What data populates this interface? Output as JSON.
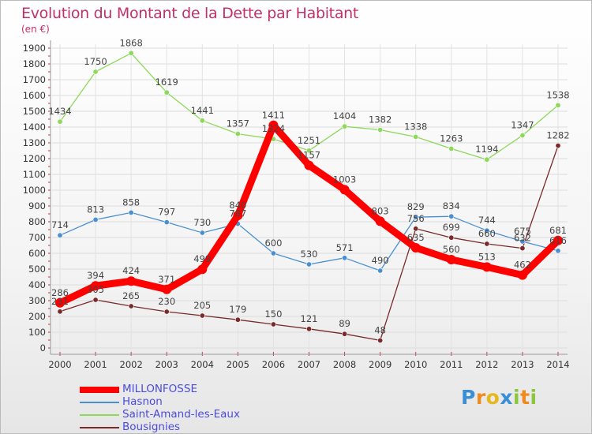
{
  "title": "Evolution du Montant de la Dette par Habitant",
  "unit_label": "(en €)",
  "logo_letters": [
    {
      "ch": "P",
      "color": "#3a8ed6"
    },
    {
      "ch": "r",
      "color": "#f08a1e"
    },
    {
      "ch": "o",
      "color": "#e8b81a"
    },
    {
      "ch": "x",
      "color": "#3a8ed6"
    },
    {
      "ch": "i",
      "color": "#8cc63f"
    },
    {
      "ch": "t",
      "color": "#f08a1e"
    },
    {
      "ch": "i",
      "color": "#8cc63f"
    }
  ],
  "chart_data": {
    "type": "line",
    "title": "Evolution du Montant de la Dette par Habitant",
    "ylabel": "(en €)",
    "ylim": [
      0,
      1900
    ],
    "yticks": [
      0,
      100,
      200,
      300,
      400,
      500,
      600,
      700,
      800,
      900,
      1000,
      1100,
      1200,
      1300,
      1400,
      1500,
      1600,
      1700,
      1800,
      1900
    ],
    "categories": [
      "2000",
      "2001",
      "2002",
      "2003",
      "2004",
      "2005",
      "2006",
      "2007",
      "2008",
      "2009",
      "2010",
      "2011",
      "2012",
      "2013",
      "2014"
    ],
    "grid": true,
    "legend_position": "bottom-left",
    "series": [
      {
        "name": "MILLONFOSSE",
        "color": "#ff0000",
        "values": [
          286,
          394,
          424,
          371,
          499,
          840,
          1411,
          1157,
          1003,
          803,
          635,
          560,
          513,
          462,
          681
        ]
      },
      {
        "name": "Hasnon",
        "color": "#4a90d0",
        "values": [
          714,
          813,
          858,
          797,
          730,
          787,
          600,
          530,
          571,
          490,
          829,
          834,
          744,
          675,
          616
        ]
      },
      {
        "name": "Saint-Amand-les-Eaux",
        "color": "#8ed85a",
        "values": [
          1434,
          1750,
          1868,
          1619,
          1441,
          1357,
          1324,
          1251,
          1404,
          1382,
          1338,
          1263,
          1194,
          1347,
          1538
        ]
      },
      {
        "name": "Bousignies",
        "color": "#7a2a2a",
        "values": [
          231,
          305,
          265,
          230,
          205,
          179,
          150,
          121,
          89,
          48,
          756,
          699,
          660,
          632,
          1282
        ]
      }
    ]
  }
}
